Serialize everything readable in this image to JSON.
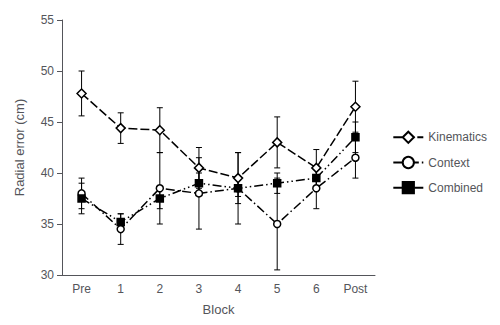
{
  "chart_data": {
    "type": "line",
    "xlabel": "Block",
    "ylabel": "Radial error (cm)",
    "categories": [
      "Pre",
      "1",
      "2",
      "3",
      "4",
      "5",
      "6",
      "Post"
    ],
    "series": [
      {
        "name": "Kinematics",
        "color": "#000000",
        "marker": "open-diamond",
        "line_style": "dashed",
        "values": [
          47.8,
          44.4,
          44.2,
          40.5,
          39.5,
          43.0,
          40.5,
          46.5
        ],
        "errors": [
          2.2,
          1.5,
          2.2,
          2.0,
          2.5,
          2.5,
          1.8,
          2.5
        ]
      },
      {
        "name": "Context",
        "color": "#000000",
        "marker": "open-circle",
        "line_style": "dashdot",
        "values": [
          38.0,
          34.5,
          38.5,
          38.0,
          38.5,
          35.0,
          38.5,
          41.5
        ],
        "errors": [
          1.5,
          1.5,
          3.5,
          3.5,
          3.5,
          4.5,
          2.0,
          2.0
        ]
      },
      {
        "name": "Combined",
        "color": "#000000",
        "marker": "square",
        "line_style": "dashdotdot",
        "values": [
          37.5,
          35.2,
          37.5,
          39.0,
          38.5,
          39.0,
          39.5,
          43.5
        ],
        "errors": [
          1.5,
          0.8,
          1.0,
          1.0,
          0.8,
          1.0,
          1.2,
          1.5
        ]
      }
    ],
    "ylim": [
      30,
      55
    ],
    "yticks": [
      30,
      35,
      40,
      45,
      50,
      55
    ],
    "grid": false,
    "legend": "right"
  }
}
